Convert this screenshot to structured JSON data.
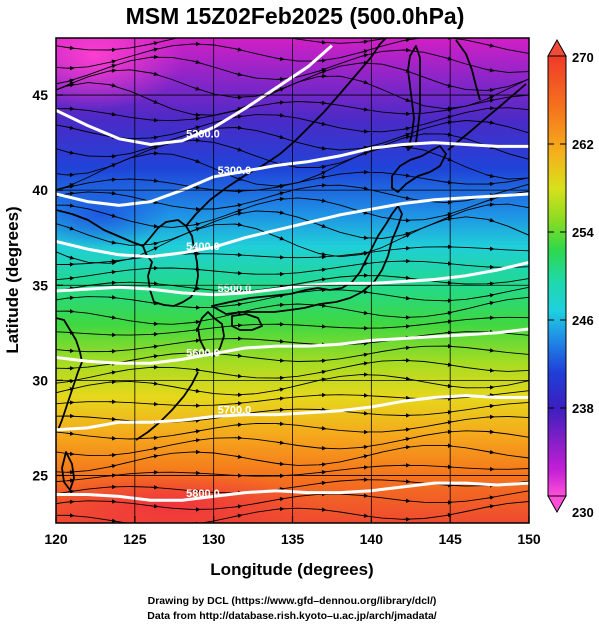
{
  "chart_data": {
    "type": "heatmap",
    "title": "MSM 15Z02Feb2025 (500.0hPa)",
    "xlabel": "Longitude (degrees)",
    "ylabel": "Latitude  (degrees)",
    "xlim": [
      120,
      150
    ],
    "ylim": [
      22.5,
      48
    ],
    "x_ticks": [
      120,
      125,
      130,
      135,
      140,
      145,
      150
    ],
    "y_ticks": [
      25,
      30,
      35,
      40,
      45
    ],
    "grid": true,
    "colorbar": {
      "range": [
        230,
        270
      ],
      "ticks": [
        230,
        238,
        246,
        254,
        262,
        270
      ],
      "extend": "both",
      "placement": "right"
    },
    "height_contours": [
      {
        "label": "5200.0",
        "level": 5200,
        "points": [
          [
            120,
            44.2
          ],
          [
            122,
            43.4
          ],
          [
            124,
            42.7
          ],
          [
            126,
            42.4
          ],
          [
            128,
            42.6
          ],
          [
            130,
            43.3
          ],
          [
            132,
            44.3
          ],
          [
            134,
            45.4
          ],
          [
            136,
            46.5
          ],
          [
            137.5,
            47.6
          ]
        ]
      },
      {
        "label": "5300.0",
        "level": 5300,
        "points": [
          [
            120,
            39.8
          ],
          [
            122,
            39.4
          ],
          [
            124,
            39.2
          ],
          [
            126,
            39.4
          ],
          [
            128,
            40.0
          ],
          [
            130,
            40.7
          ],
          [
            132,
            41.0
          ],
          [
            134,
            41.3
          ],
          [
            136,
            41.5
          ],
          [
            138,
            41.8
          ],
          [
            140,
            42.2
          ],
          [
            142,
            42.4
          ],
          [
            144,
            42.5
          ],
          [
            146,
            42.4
          ],
          [
            148,
            42.3
          ],
          [
            150,
            42.3
          ]
        ]
      },
      {
        "label": "5400.0",
        "level": 5400,
        "points": [
          [
            120,
            37.3
          ],
          [
            122,
            36.9
          ],
          [
            124,
            36.6
          ],
          [
            126,
            36.5
          ],
          [
            128,
            36.7
          ],
          [
            130,
            37.0
          ],
          [
            132,
            37.5
          ],
          [
            134,
            37.9
          ],
          [
            136,
            38.3
          ],
          [
            138,
            38.7
          ],
          [
            140,
            39.0
          ],
          [
            142,
            39.3
          ],
          [
            144,
            39.5
          ],
          [
            146,
            39.6
          ],
          [
            148,
            39.7
          ],
          [
            150,
            39.8
          ]
        ]
      },
      {
        "label": "5500.0",
        "level": 5500,
        "points": [
          [
            120,
            34.7
          ],
          [
            122,
            34.8
          ],
          [
            124,
            34.9
          ],
          [
            126,
            34.8
          ],
          [
            128,
            34.6
          ],
          [
            130,
            34.5
          ],
          [
            132,
            34.6
          ],
          [
            134,
            34.8
          ],
          [
            136,
            35.0
          ],
          [
            138,
            35.1
          ],
          [
            140,
            35.1
          ],
          [
            142,
            35.2
          ],
          [
            144,
            35.3
          ],
          [
            146,
            35.5
          ],
          [
            148,
            35.8
          ],
          [
            150,
            36.2
          ]
        ]
      },
      {
        "label": "5600.0",
        "level": 5600,
        "points": [
          [
            120,
            31.2
          ],
          [
            122,
            31.0
          ],
          [
            124,
            30.9
          ],
          [
            126,
            30.9
          ],
          [
            128,
            31.1
          ],
          [
            130,
            31.4
          ],
          [
            132,
            31.7
          ],
          [
            134,
            31.8
          ],
          [
            136,
            31.8
          ],
          [
            138,
            31.9
          ],
          [
            140,
            32.1
          ],
          [
            142,
            32.2
          ],
          [
            144,
            32.3
          ],
          [
            146,
            32.4
          ],
          [
            148,
            32.5
          ],
          [
            150,
            32.7
          ]
        ]
      },
      {
        "label": "5700.0",
        "level": 5700,
        "points": [
          [
            120,
            27.4
          ],
          [
            122,
            27.5
          ],
          [
            124,
            27.8
          ],
          [
            126,
            27.8
          ],
          [
            128,
            27.9
          ],
          [
            130,
            28.1
          ],
          [
            132,
            28.2
          ],
          [
            134,
            28.2
          ],
          [
            136,
            28.3
          ],
          [
            138,
            28.4
          ],
          [
            140,
            28.6
          ],
          [
            142,
            28.9
          ],
          [
            144,
            29.1
          ],
          [
            146,
            29.2
          ],
          [
            148,
            29.1
          ],
          [
            150,
            29.1
          ]
        ]
      },
      {
        "label": "5800.0",
        "level": 5800,
        "points": [
          [
            120,
            24.0
          ],
          [
            122,
            24.0
          ],
          [
            124,
            23.9
          ],
          [
            126,
            23.7
          ],
          [
            128,
            23.7
          ],
          [
            130,
            23.9
          ],
          [
            132,
            24.1
          ],
          [
            134,
            24.2
          ],
          [
            136,
            24.1
          ],
          [
            138,
            24.1
          ],
          [
            140,
            24.2
          ],
          [
            142,
            24.4
          ],
          [
            144,
            24.6
          ],
          [
            146,
            24.6
          ],
          [
            148,
            24.5
          ],
          [
            150,
            24.6
          ]
        ]
      }
    ],
    "wind_field": "westerly streamlines",
    "temperature_field": "cold (purple/blue) north, warm (orange/red) south",
    "coastlines": true
  },
  "credits": {
    "line1": "Drawing by DCL (https://www.gfd–dennou.org/library/dcl/)",
    "line2": "Data from http://database.rish.kyoto–u.ac.jp/arch/jmadata/"
  }
}
